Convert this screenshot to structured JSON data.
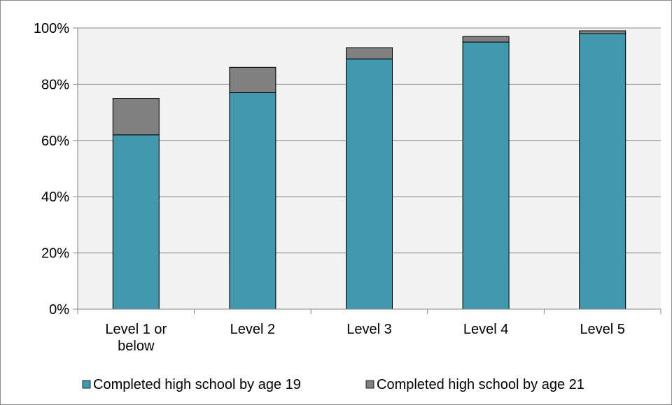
{
  "chart_data": {
    "type": "bar",
    "stacked": true,
    "title": "",
    "xlabel": "",
    "ylabel": "",
    "ylim": [
      0,
      100
    ],
    "yticks": [
      "0%",
      "20%",
      "40%",
      "60%",
      "80%",
      "100%"
    ],
    "grid": true,
    "legend_position": "bottom",
    "categories": [
      [
        "Level 1 or",
        "below"
      ],
      [
        "Level 2"
      ],
      [
        "Level 3"
      ],
      [
        "Level 4"
      ],
      [
        "Level 5"
      ]
    ],
    "series": [
      {
        "name": "Completed high school by age 19",
        "color": "#4298ae",
        "values": [
          62,
          77,
          89,
          95,
          98
        ]
      },
      {
        "name": "Completed high school by age 21",
        "color": "#808080",
        "values": [
          13,
          9,
          4,
          2,
          1
        ]
      }
    ]
  }
}
